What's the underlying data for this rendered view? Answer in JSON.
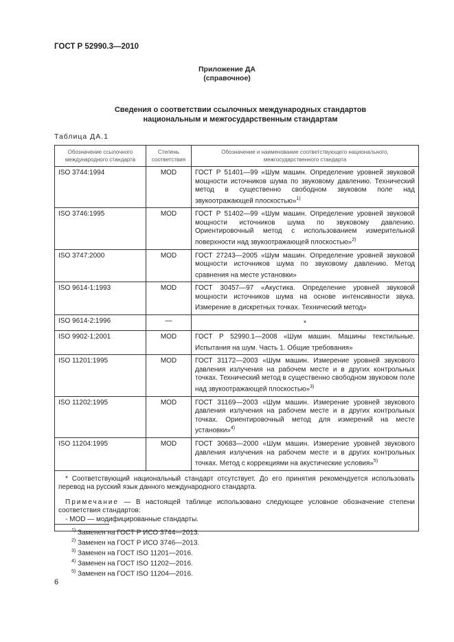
{
  "header": "ГОСТ Р 52990.3—2010",
  "appendix": {
    "title": "Приложение ДА",
    "subtitle": "(справочное)"
  },
  "section_title": [
    "Сведения о соответствии ссылочных международных стандартов",
    "национальным и межгосударственным стандартам"
  ],
  "table_caption": "Таблица ДА.1",
  "table": {
    "headers": [
      "Обозначение ссылочного международного стандарта",
      "Степень соответствия",
      "Обозначение и наименование соответствующего национального, межгосударственного стандарта"
    ],
    "rows": [
      {
        "iso": "ISO 3744:1994",
        "degree": "MOD",
        "gost": "ГОСТ Р 51401—99 «Шум машин. Определение уровней звуковой мощности источников шума по звуковому давлению. Технический метод в существенно свободном звуковом поле над звукоотражающей плоскостью»",
        "fn": "1)"
      },
      {
        "iso": "ISO 3746:1995",
        "degree": "MOD",
        "gost": "ГОСТ Р 51402—99 «Шум машин. Определение уровней звуковой мощности источников шума по звуковому давлению. Ориентировочный метод с использованием измерительной поверхности над звукоотражающей плоскостью»",
        "fn": "2)"
      },
      {
        "iso": "ISO 3747:2000",
        "degree": "MOD",
        "gost": "ГОСТ 27243—2005 «Шум машин. Определение уровней звуковой мощности источников шума по звуковому давлению. Метод сравнения на месте установки»",
        "fn": ""
      },
      {
        "iso": "ISO 9614-1:1993",
        "degree": "MOD",
        "gost": "ГОСТ 30457—97 «Акустика. Определение уровней звуковой мощности источников шума на основе интенсивности звука. Измерение в дискретных точках. Технический метод»",
        "fn": ""
      },
      {
        "iso": "ISO 9614-2:1996",
        "degree": "—",
        "gost": "*",
        "fn": ""
      },
      {
        "iso": "ISO 9902-1:2001",
        "degree": "MOD",
        "gost": "ГОСТ Р 52990.1—2008 «Шум машин. Машины текстильные. Испытания на шум. Часть 1. Общие требования»",
        "fn": ""
      },
      {
        "iso": "ISO 11201:1995",
        "degree": "MOD",
        "gost": "ГОСТ 31172—2003 «Шум машин. Измерение уровней звукового давления излучения на рабочем месте и в других контрольных точках. Технический метод в существенно свободном звуковом поле над звукоотражающей плоскостью»",
        "fn": "3)"
      },
      {
        "iso": "ISO 11202:1995",
        "degree": "MOD",
        "gost": "ГОСТ 31169—2003 «Шум машин. Измерение уровней звукового давления излучения на рабочем месте и в других контрольных точках. Ориентировочный метод для измерений на месте установки»",
        "fn": "4)"
      },
      {
        "iso": "ISO 11204:1995",
        "degree": "MOD",
        "gost": "ГОСТ 30683—2000 «Шум машин. Измерение уровней звукового давления излучения на рабочем месте и в других контрольных точках. Метод с коррекциями на акустические условия»",
        "fn": "5)"
      }
    ],
    "note_star": "* Соответствующий национальный стандарт отсутствует. До его принятия рекомендуется использовать перевод на русский язык данного международного стандарта.",
    "note_label": "Примечание",
    "note_text": " — В настоящей таблице использовано следующее условное обозначение степени соответствия стандартов:",
    "note_item": "- MOD — модифицированные стандарты."
  },
  "footnotes": [
    {
      "mark": "1)",
      "text": "Заменен на ГОСТ Р ИСО 3744—2013."
    },
    {
      "mark": "2)",
      "text": "Заменен на ГОСТ Р ИСО 3746—2013."
    },
    {
      "mark": "3)",
      "text": "Заменен на ГОСТ ISO 11201—2016."
    },
    {
      "mark": "4)",
      "text": "Заменен на ГОСТ ISO 11202—2016."
    },
    {
      "mark": "5)",
      "text": "Заменен на ГОСТ ISO 11204—2016."
    }
  ],
  "page_number": "6"
}
